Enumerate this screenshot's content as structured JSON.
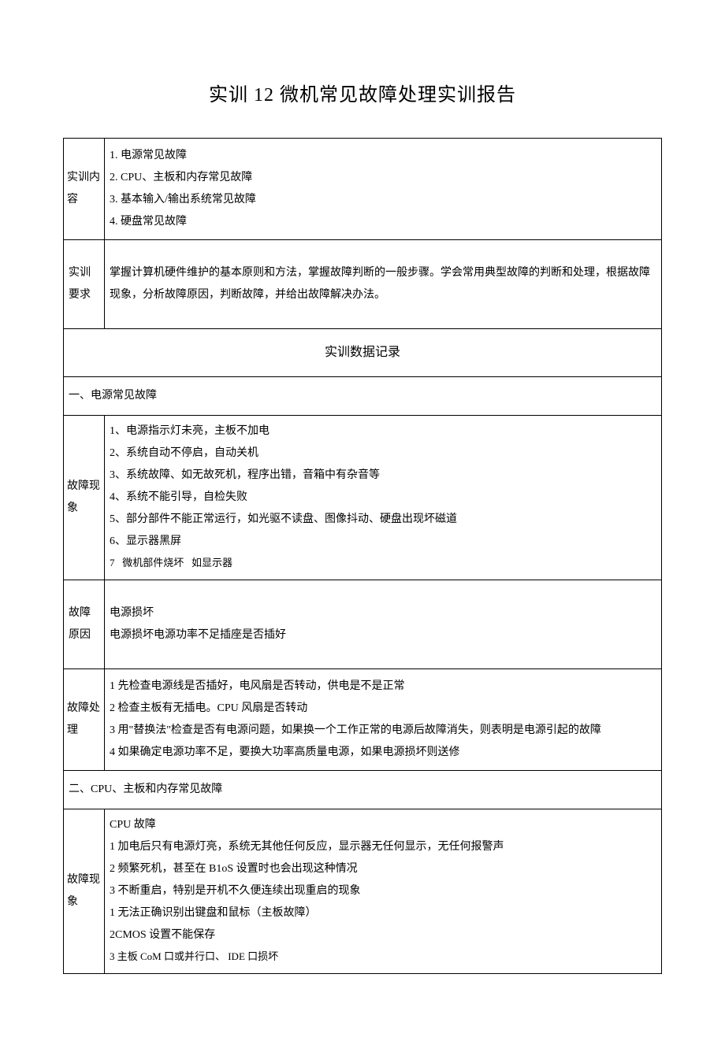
{
  "title": "实训 12 微机常见故障处理实训报告",
  "row1": {
    "label": "实训内容",
    "lines": [
      "1. 电源常见故障",
      "2. CPU、主板和内存常见故障",
      "3. 基本输入/输出系统常见故障",
      "4. 硬盘常见故障"
    ]
  },
  "row2": {
    "label": "实训要求",
    "text": "掌握计算机硬件维护的基本原则和方法，掌握故障判断的一般步骤。学会常用典型故障的判断和处理，根据故障现象，分析故障原因，判断故障，并给出故障解决办法。"
  },
  "recordHeader": "实训数据记录",
  "section1": {
    "heading": "一、电源常见故障",
    "symptoms": {
      "label": "故障现象",
      "lines": [
        "1、电源指示灯未亮，主板不加电",
        "2、系统自动不停启，自动关机",
        "3、系统故障、如无故死机，程序出错，音箱中有杂音等",
        "4、系统不能引导，自检失败",
        "5、部分部件不能正常运行，如光驱不读盘、图像抖动、硬盘出现坏磁道",
        "6、显示器黑屏",
        "7   微机部件烧坏   如显示器"
      ]
    },
    "cause": {
      "label": "故障原因",
      "lines": [
        "电源损坏",
        "电源损坏电源功率不足插座是否插好"
      ]
    },
    "handling": {
      "label": "故障处理",
      "lines": [
        "1 先检查电源线是否插好，电风扇是否转动，供电是不是正常",
        "2 检查主板有无插电。CPU 风扇是否转动",
        "3 用\"替换法\"检查是否有电源问题，如果换一个工作正常的电源后故障消失，则表明是电源引起的故障",
        "4 如果确定电源功率不足，要换大功率高质量电源，如果电源损坏则送修"
      ]
    }
  },
  "section2": {
    "heading": "二、CPU、主板和内存常见故障",
    "symptoms": {
      "label": "故障现象",
      "lines": [
        "CPU 故障",
        "1 加电后只有电源灯亮，系统无其他任何反应，显示器无任何显示，无任何报警声",
        "2 频繁死机，甚至在 B1oS 设置时也会出现这种情况",
        "3 不断重启，特别是开机不久便连续出现重启的现象",
        "1 无法正确识别出键盘和鼠标（主板故障）",
        "2CMOS 设置不能保存",
        "3 主板 CoM 口或并行口、 IDE 口损坏"
      ]
    }
  },
  "colors": {
    "text": "#000000",
    "bg": "#ffffff",
    "border": "#000000"
  },
  "layout": {
    "pageWidth": 920,
    "pageHeight": 1301,
    "labelColWidth": 52
  }
}
